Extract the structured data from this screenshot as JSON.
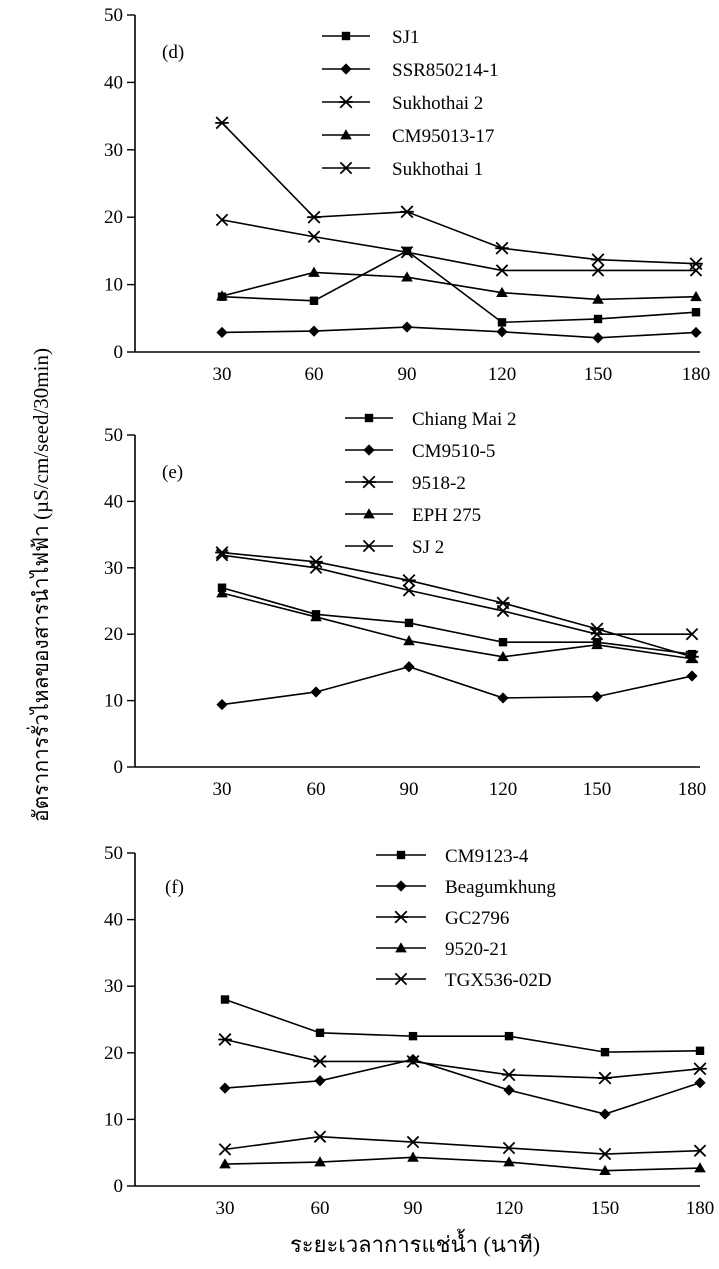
{
  "ylabel": "อัตราการรั่วไหลของสารนำไฟฟ้า (µS/cm/seed/30min)",
  "xlabel": "ระยะเวลาการแช่น้ำ (นาที)",
  "chart_data": [
    {
      "type": "line",
      "panel_label": "(d)",
      "x": [
        30,
        60,
        90,
        120,
        150,
        180
      ],
      "ylim": [
        0,
        50
      ],
      "yticks": [
        0,
        10,
        20,
        30,
        40,
        50
      ],
      "series": [
        {
          "name": "SJ1",
          "marker": "square",
          "values": [
            8.2,
            7.6,
            15.0,
            4.4,
            4.9,
            5.9
          ]
        },
        {
          "name": "SSR850214-1",
          "marker": "diamond",
          "values": [
            2.9,
            3.1,
            3.7,
            3.0,
            2.1,
            2.9
          ]
        },
        {
          "name": "Sukhothai 2",
          "marker": "asterisk",
          "values": [
            34.0,
            20.0,
            20.8,
            15.4,
            13.7,
            13.1
          ]
        },
        {
          "name": "CM95013-17",
          "marker": "triangle",
          "values": [
            8.3,
            11.8,
            11.1,
            8.8,
            7.8,
            8.2
          ]
        },
        {
          "name": "Sukhothai 1",
          "marker": "x",
          "values": [
            19.6,
            17.1,
            14.8,
            12.1,
            12.1,
            12.1
          ]
        }
      ]
    },
    {
      "type": "line",
      "panel_label": "(e)",
      "x": [
        30,
        60,
        90,
        120,
        150,
        180
      ],
      "ylim": [
        0,
        50
      ],
      "yticks": [
        0,
        10,
        20,
        30,
        40,
        50
      ],
      "series": [
        {
          "name": "Chiang Mai 2",
          "marker": "square",
          "values": [
            27.0,
            23.0,
            21.7,
            18.8,
            18.8,
            17.0
          ]
        },
        {
          "name": "CM9510-5",
          "marker": "diamond",
          "values": [
            9.4,
            11.3,
            15.1,
            10.4,
            10.6,
            13.7
          ]
        },
        {
          "name": "9518-2",
          "marker": "asterisk",
          "values": [
            32.3,
            30.9,
            28.1,
            24.7,
            20.8,
            16.6
          ]
        },
        {
          "name": "EPH 275",
          "marker": "triangle",
          "values": [
            26.2,
            22.6,
            19.0,
            16.6,
            18.4,
            16.3
          ]
        },
        {
          "name": "SJ 2",
          "marker": "x",
          "values": [
            31.9,
            30.0,
            26.6,
            23.5,
            20.0,
            20.0
          ]
        }
      ]
    },
    {
      "type": "line",
      "panel_label": "(f)",
      "x": [
        30,
        60,
        90,
        120,
        150,
        180
      ],
      "ylim": [
        0,
        50
      ],
      "yticks": [
        0,
        10,
        20,
        30,
        40,
        50
      ],
      "series": [
        {
          "name": "CM9123-4",
          "marker": "square",
          "values": [
            28.0,
            23.0,
            22.5,
            22.5,
            20.1,
            20.3
          ]
        },
        {
          "name": "Beagumkhung",
          "marker": "diamond",
          "values": [
            14.7,
            15.8,
            19.0,
            14.4,
            10.8,
            15.5
          ]
        },
        {
          "name": "GC2796",
          "marker": "asterisk",
          "values": [
            22.0,
            18.7,
            18.7,
            16.7,
            16.2,
            17.6
          ]
        },
        {
          "name": "9520-21",
          "marker": "triangle",
          "values": [
            3.3,
            3.6,
            4.3,
            3.6,
            2.3,
            2.7
          ]
        },
        {
          "name": "TGX536-02D",
          "marker": "x",
          "values": [
            5.5,
            7.4,
            6.6,
            5.7,
            4.8,
            5.3
          ]
        }
      ]
    }
  ]
}
